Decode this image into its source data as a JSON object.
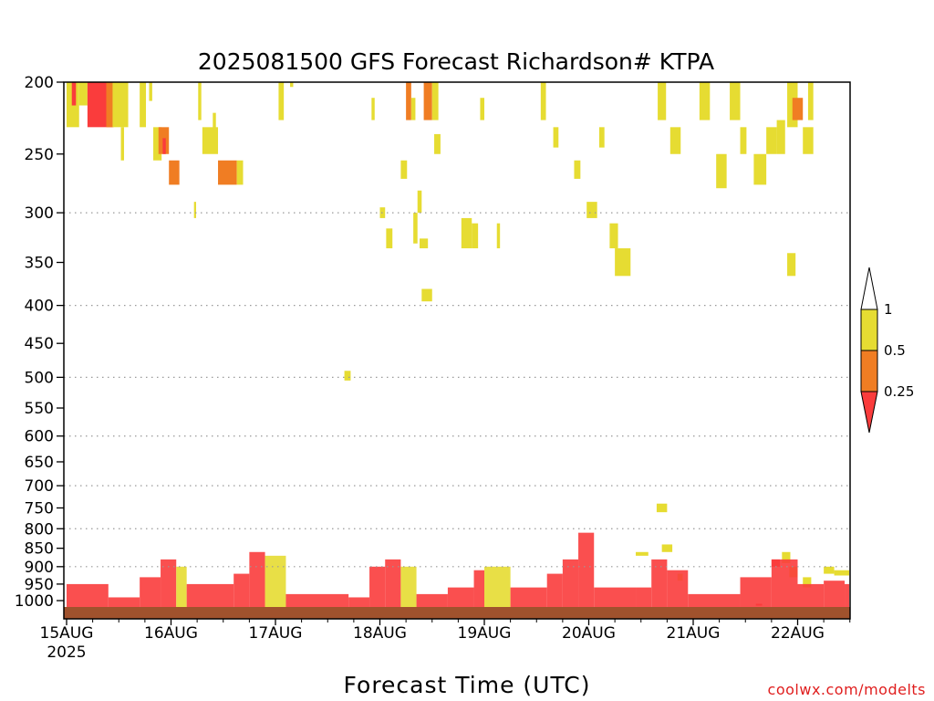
{
  "chart_data": {
    "type": "heatmap",
    "title": "2025081500 GFS Forecast Richardson# KTPA",
    "xlabel": "Forecast Time (UTC)",
    "ylabel": "",
    "credit": "coolwx.com/modelts",
    "x_ticks": [
      "15AUG",
      "16AUG",
      "17AUG",
      "18AUG",
      "19AUG",
      "20AUG",
      "21AUG",
      "22AUG"
    ],
    "x_tick_sub": "2025",
    "x_range_days": [
      0,
      7.5
    ],
    "y_ticks": [
      200,
      250,
      300,
      350,
      400,
      450,
      500,
      550,
      600,
      650,
      700,
      750,
      800,
      850,
      900,
      950,
      1000
    ],
    "y_range_hpa": [
      200,
      1020
    ],
    "y_scale": "log",
    "dotted_grid_levels": [
      300,
      400,
      500,
      600,
      700,
      800,
      900
    ],
    "ground_color": "#a0522d",
    "legend": {
      "position": "right",
      "labels": [
        "1",
        "0.5",
        "0.25"
      ],
      "bins": [
        {
          "range": "0.5-1",
          "color": "#e6dc32"
        },
        {
          "range": "0.25-0.5",
          "color": "#f07d23"
        },
        {
          "range": "<0.25",
          "color": "#fa3c3c"
        }
      ],
      "over_color": "#ffffff",
      "under_color": "#fa3c3c"
    },
    "colors": {
      "Y": "#e6dc32",
      "O": "#f07d23",
      "R": "#fa3c3c"
    },
    "cells": [
      {
        "day": 0.0,
        "d": 0.12,
        "top": 200,
        "bot": 230,
        "c": "Y"
      },
      {
        "day": 0.05,
        "d": 0.04,
        "top": 200,
        "bot": 215,
        "c": "R"
      },
      {
        "day": 0.12,
        "d": 0.08,
        "top": 200,
        "bot": 215,
        "c": "Y"
      },
      {
        "day": 0.2,
        "d": 0.25,
        "top": 200,
        "bot": 230,
        "c": "R"
      },
      {
        "day": 0.38,
        "d": 0.06,
        "top": 200,
        "bot": 230,
        "c": "O"
      },
      {
        "day": 0.44,
        "d": 0.15,
        "top": 200,
        "bot": 230,
        "c": "Y"
      },
      {
        "day": 0.52,
        "d": 0.03,
        "top": 230,
        "bot": 255,
        "c": "Y"
      },
      {
        "day": 0.7,
        "d": 0.06,
        "top": 200,
        "bot": 230,
        "c": "Y"
      },
      {
        "day": 0.79,
        "d": 0.03,
        "top": 200,
        "bot": 212,
        "c": "Y"
      },
      {
        "day": 0.83,
        "d": 0.08,
        "top": 230,
        "bot": 255,
        "c": "Y"
      },
      {
        "day": 0.88,
        "d": 0.1,
        "top": 230,
        "bot": 250,
        "c": "O"
      },
      {
        "day": 0.92,
        "d": 0.03,
        "top": 238,
        "bot": 250,
        "c": "R"
      },
      {
        "day": 0.98,
        "d": 0.1,
        "top": 255,
        "bot": 275,
        "c": "O"
      },
      {
        "day": 1.22,
        "d": 0.02,
        "top": 290,
        "bot": 305,
        "c": "Y"
      },
      {
        "day": 1.26,
        "d": 0.03,
        "top": 200,
        "bot": 225,
        "c": "Y"
      },
      {
        "day": 1.3,
        "d": 0.15,
        "top": 230,
        "bot": 250,
        "c": "Y"
      },
      {
        "day": 1.4,
        "d": 0.03,
        "top": 220,
        "bot": 232,
        "c": "Y"
      },
      {
        "day": 1.45,
        "d": 0.18,
        "top": 255,
        "bot": 275,
        "c": "O"
      },
      {
        "day": 1.63,
        "d": 0.06,
        "top": 255,
        "bot": 275,
        "c": "Y"
      },
      {
        "day": 2.03,
        "d": 0.05,
        "top": 200,
        "bot": 225,
        "c": "Y"
      },
      {
        "day": 2.14,
        "d": 0.03,
        "top": 200,
        "bot": 203,
        "c": "Y"
      },
      {
        "day": 2.66,
        "d": 0.06,
        "top": 490,
        "bot": 505,
        "c": "Y"
      },
      {
        "day": 2.92,
        "d": 0.03,
        "top": 210,
        "bot": 225,
        "c": "Y"
      },
      {
        "day": 3.0,
        "d": 0.05,
        "top": 295,
        "bot": 305,
        "c": "Y"
      },
      {
        "day": 3.06,
        "d": 0.06,
        "top": 315,
        "bot": 335,
        "c": "Y"
      },
      {
        "day": 3.2,
        "d": 0.06,
        "top": 255,
        "bot": 270,
        "c": "Y"
      },
      {
        "day": 3.25,
        "d": 0.05,
        "top": 200,
        "bot": 225,
        "c": "O"
      },
      {
        "day": 3.3,
        "d": 0.04,
        "top": 210,
        "bot": 225,
        "c": "Y"
      },
      {
        "day": 3.32,
        "d": 0.04,
        "top": 300,
        "bot": 330,
        "c": "Y"
      },
      {
        "day": 3.36,
        "d": 0.04,
        "top": 280,
        "bot": 300,
        "c": "Y"
      },
      {
        "day": 3.38,
        "d": 0.08,
        "top": 325,
        "bot": 335,
        "c": "Y"
      },
      {
        "day": 3.4,
        "d": 0.1,
        "top": 380,
        "bot": 395,
        "c": "Y"
      },
      {
        "day": 3.42,
        "d": 0.08,
        "top": 200,
        "bot": 225,
        "c": "O"
      },
      {
        "day": 3.5,
        "d": 0.06,
        "top": 200,
        "bot": 225,
        "c": "Y"
      },
      {
        "day": 3.52,
        "d": 0.06,
        "top": 235,
        "bot": 250,
        "c": "Y"
      },
      {
        "day": 3.78,
        "d": 0.1,
        "top": 305,
        "bot": 335,
        "c": "Y"
      },
      {
        "day": 3.88,
        "d": 0.06,
        "top": 310,
        "bot": 335,
        "c": "Y"
      },
      {
        "day": 3.96,
        "d": 0.04,
        "top": 210,
        "bot": 225,
        "c": "Y"
      },
      {
        "day": 4.12,
        "d": 0.03,
        "top": 310,
        "bot": 335,
        "c": "Y"
      },
      {
        "day": 4.54,
        "d": 0.05,
        "top": 200,
        "bot": 225,
        "c": "Y"
      },
      {
        "day": 4.66,
        "d": 0.05,
        "top": 230,
        "bot": 245,
        "c": "Y"
      },
      {
        "day": 4.86,
        "d": 0.06,
        "top": 255,
        "bot": 270,
        "c": "Y"
      },
      {
        "day": 4.98,
        "d": 0.1,
        "top": 290,
        "bot": 305,
        "c": "Y"
      },
      {
        "day": 5.1,
        "d": 0.05,
        "top": 230,
        "bot": 245,
        "c": "Y"
      },
      {
        "day": 5.2,
        "d": 0.08,
        "top": 310,
        "bot": 335,
        "c": "Y"
      },
      {
        "day": 5.25,
        "d": 0.15,
        "top": 335,
        "bot": 365,
        "c": "Y"
      },
      {
        "day": 5.66,
        "d": 0.08,
        "top": 200,
        "bot": 225,
        "c": "Y"
      },
      {
        "day": 5.78,
        "d": 0.1,
        "top": 230,
        "bot": 250,
        "c": "Y"
      },
      {
        "day": 6.06,
        "d": 0.1,
        "top": 200,
        "bot": 225,
        "c": "Y"
      },
      {
        "day": 6.22,
        "d": 0.1,
        "top": 250,
        "bot": 278,
        "c": "Y"
      },
      {
        "day": 6.35,
        "d": 0.1,
        "top": 200,
        "bot": 225,
        "c": "Y"
      },
      {
        "day": 6.45,
        "d": 0.06,
        "top": 230,
        "bot": 250,
        "c": "Y"
      },
      {
        "day": 6.58,
        "d": 0.12,
        "top": 250,
        "bot": 275,
        "c": "Y"
      },
      {
        "day": 6.7,
        "d": 0.1,
        "top": 230,
        "bot": 250,
        "c": "Y"
      },
      {
        "day": 6.8,
        "d": 0.08,
        "top": 225,
        "bot": 250,
        "c": "Y"
      },
      {
        "day": 6.9,
        "d": 0.08,
        "top": 340,
        "bot": 365,
        "c": "Y"
      },
      {
        "day": 6.9,
        "d": 0.1,
        "top": 200,
        "bot": 230,
        "c": "Y"
      },
      {
        "day": 6.95,
        "d": 0.1,
        "top": 210,
        "bot": 225,
        "c": "O"
      },
      {
        "day": 7.05,
        "d": 0.1,
        "top": 230,
        "bot": 250,
        "c": "Y"
      },
      {
        "day": 7.1,
        "d": 0.05,
        "top": 200,
        "bot": 225,
        "c": "Y"
      },
      {
        "day": 5.45,
        "d": 0.12,
        "top": 860,
        "bot": 870,
        "c": "Y"
      },
      {
        "day": 5.65,
        "d": 0.1,
        "top": 740,
        "bot": 760,
        "c": "Y"
      },
      {
        "day": 5.7,
        "d": 0.1,
        "top": 840,
        "bot": 860,
        "c": "Y"
      },
      {
        "day": 5.85,
        "d": 0.05,
        "top": 920,
        "bot": 940,
        "c": "Y"
      },
      {
        "day": 6.6,
        "d": 0.06,
        "top": 1010,
        "bot": 1015,
        "c": "R"
      },
      {
        "day": 6.75,
        "d": 0.08,
        "top": 880,
        "bot": 900,
        "c": "R"
      },
      {
        "day": 6.85,
        "d": 0.08,
        "top": 860,
        "bot": 890,
        "c": "Y"
      },
      {
        "day": 6.92,
        "d": 0.08,
        "top": 900,
        "bot": 930,
        "c": "Y"
      },
      {
        "day": 7.05,
        "d": 0.08,
        "top": 930,
        "bot": 960,
        "c": "Y"
      },
      {
        "day": 7.25,
        "d": 0.1,
        "top": 900,
        "bot": 920,
        "c": "Y"
      },
      {
        "day": 7.35,
        "d": 0.15,
        "top": 910,
        "bot": 925,
        "c": "Y"
      }
    ],
    "boundary_layer": [
      {
        "day": 0.0,
        "top": 950,
        "c": "R"
      },
      {
        "day": 0.4,
        "top": 990,
        "c": "R"
      },
      {
        "day": 0.7,
        "top": 930,
        "c": "R"
      },
      {
        "day": 0.9,
        "top": 880,
        "c": "R"
      },
      {
        "day": 1.05,
        "top": 900,
        "c": "Y"
      },
      {
        "day": 1.15,
        "top": 950,
        "c": "R"
      },
      {
        "day": 1.6,
        "top": 920,
        "c": "R"
      },
      {
        "day": 1.75,
        "top": 860,
        "c": "R"
      },
      {
        "day": 1.9,
        "top": 870,
        "c": "Y"
      },
      {
        "day": 2.1,
        "top": 980,
        "c": "R"
      },
      {
        "day": 2.7,
        "top": 990,
        "c": "R"
      },
      {
        "day": 2.9,
        "top": 900,
        "c": "R"
      },
      {
        "day": 3.05,
        "top": 880,
        "c": "R"
      },
      {
        "day": 3.2,
        "top": 900,
        "c": "Y"
      },
      {
        "day": 3.35,
        "top": 980,
        "c": "R"
      },
      {
        "day": 3.65,
        "top": 960,
        "c": "R"
      },
      {
        "day": 3.9,
        "top": 910,
        "c": "R"
      },
      {
        "day": 4.0,
        "top": 900,
        "c": "Y"
      },
      {
        "day": 4.25,
        "top": 960,
        "c": "R"
      },
      {
        "day": 4.6,
        "top": 920,
        "c": "R"
      },
      {
        "day": 4.75,
        "top": 880,
        "c": "R"
      },
      {
        "day": 4.9,
        "top": 810,
        "c": "R"
      },
      {
        "day": 5.05,
        "top": 960,
        "c": "R"
      },
      {
        "day": 5.45,
        "top": 960,
        "c": "R"
      },
      {
        "day": 5.6,
        "top": 880,
        "c": "R"
      },
      {
        "day": 5.75,
        "top": 910,
        "c": "R"
      },
      {
        "day": 5.95,
        "top": 980,
        "c": "R"
      },
      {
        "day": 6.45,
        "top": 930,
        "c": "R"
      },
      {
        "day": 6.75,
        "top": 880,
        "c": "R"
      },
      {
        "day": 7.0,
        "top": 950,
        "c": "R"
      },
      {
        "day": 7.25,
        "top": 940,
        "c": "R"
      },
      {
        "day": 7.45,
        "top": 950,
        "c": "R"
      }
    ]
  }
}
